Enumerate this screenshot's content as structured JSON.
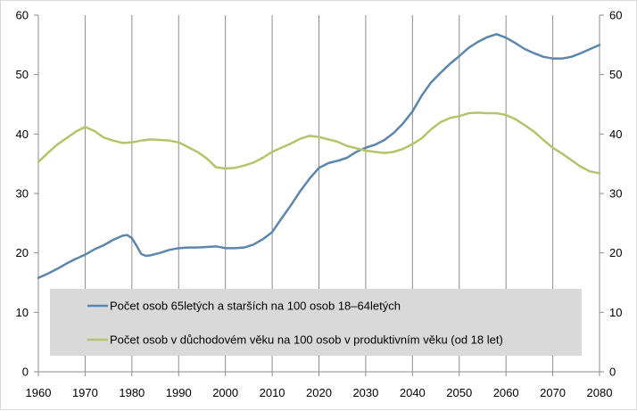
{
  "chart_data": {
    "type": "line",
    "xlim": [
      1960,
      2080
    ],
    "ylim": [
      0,
      60
    ],
    "x_ticks": [
      1960,
      1970,
      1980,
      1990,
      2000,
      2010,
      2020,
      2030,
      2040,
      2050,
      2060,
      2070,
      2080
    ],
    "y_ticks": [
      0,
      10,
      20,
      30,
      40,
      50,
      60
    ],
    "y_axis_left_labels": true,
    "y_axis_right_labels": true,
    "grid": {
      "vertical": true,
      "horizontal": false
    },
    "legend_placement": "lower-center",
    "legend_background": "#d9d9d9",
    "series": [
      {
        "name": "Počet osob 65letých a starších na 100 osob 18–64letých",
        "color": "#5b86ad",
        "x": [
          1960,
          1962,
          1964,
          1966,
          1968,
          1970,
          1972,
          1974,
          1976,
          1978,
          1979,
          1980,
          1981,
          1982,
          1983,
          1984,
          1986,
          1988,
          1990,
          1992,
          1994,
          1996,
          1998,
          2000,
          2002,
          2004,
          2006,
          2008,
          2010,
          2012,
          2014,
          2016,
          2018,
          2020,
          2022,
          2024,
          2026,
          2028,
          2030,
          2032,
          2034,
          2036,
          2038,
          2040,
          2042,
          2044,
          2046,
          2048,
          2050,
          2052,
          2054,
          2056,
          2058,
          2060,
          2062,
          2064,
          2066,
          2068,
          2070,
          2072,
          2074,
          2076,
          2078,
          2080
        ],
        "values": [
          15.8,
          16.5,
          17.3,
          18.2,
          19.0,
          19.7,
          20.6,
          21.3,
          22.2,
          22.9,
          23.0,
          22.5,
          21.2,
          19.8,
          19.5,
          19.6,
          20.0,
          20.5,
          20.8,
          20.9,
          20.9,
          21.0,
          21.1,
          20.8,
          20.8,
          20.9,
          21.4,
          22.3,
          23.5,
          25.8,
          28.0,
          30.4,
          32.5,
          34.3,
          35.1,
          35.5,
          36.0,
          37.0,
          37.7,
          38.2,
          39.0,
          40.2,
          41.8,
          43.8,
          46.5,
          48.7,
          50.3,
          51.8,
          53.1,
          54.5,
          55.5,
          56.3,
          56.8,
          56.2,
          55.3,
          54.3,
          53.6,
          53.0,
          52.7,
          52.7,
          53.0,
          53.6,
          54.3,
          55.0
        ]
      },
      {
        "name": "Počet osob v důchodovém věku na 100 osob v produktivním věku (od 18 let)",
        "color": "#b5c46a",
        "x": [
          1960,
          1962,
          1964,
          1966,
          1968,
          1970,
          1972,
          1974,
          1976,
          1978,
          1980,
          1982,
          1984,
          1986,
          1988,
          1990,
          1992,
          1994,
          1996,
          1998,
          2000,
          2002,
          2004,
          2006,
          2008,
          2010,
          2012,
          2014,
          2016,
          2018,
          2020,
          2022,
          2024,
          2026,
          2028,
          2030,
          2032,
          2034,
          2036,
          2038,
          2040,
          2042,
          2044,
          2046,
          2048,
          2050,
          2052,
          2054,
          2056,
          2058,
          2060,
          2062,
          2064,
          2066,
          2068,
          2070,
          2072,
          2074,
          2076,
          2078,
          2080
        ],
        "values": [
          35.3,
          36.8,
          38.2,
          39.3,
          40.4,
          41.2,
          40.5,
          39.4,
          38.9,
          38.5,
          38.6,
          38.9,
          39.1,
          39.0,
          38.9,
          38.6,
          37.8,
          37.0,
          35.9,
          34.4,
          34.2,
          34.3,
          34.7,
          35.2,
          36.0,
          37.0,
          37.7,
          38.4,
          39.2,
          39.7,
          39.5,
          39.1,
          38.7,
          38.0,
          37.6,
          37.2,
          37.0,
          36.8,
          37.0,
          37.5,
          38.3,
          39.3,
          40.8,
          42.0,
          42.7,
          43.0,
          43.5,
          43.6,
          43.5,
          43.5,
          43.2,
          42.5,
          41.5,
          40.4,
          39.0,
          37.7,
          36.7,
          35.6,
          34.5,
          33.7,
          33.4
        ]
      }
    ]
  }
}
